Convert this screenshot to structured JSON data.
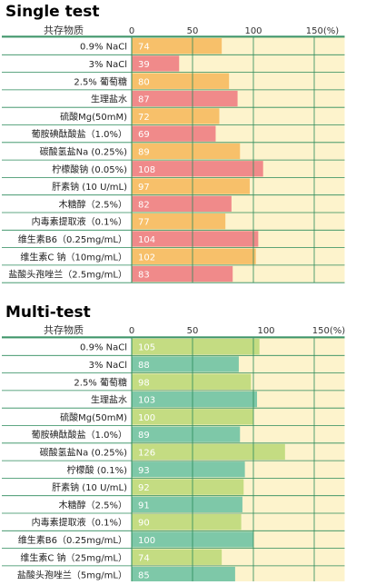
{
  "chart_data": [
    {
      "type": "bar",
      "title": "Single test",
      "column_header": "共存物质",
      "x_ticks": [
        "0",
        "50",
        "100",
        "150(%)"
      ],
      "xlim": [
        0,
        175
      ],
      "categories": [
        "0.9% NaCl",
        "3% NaCl",
        "2.5% 葡萄糖",
        "生理盐水",
        "硫酸Mg(50mM)",
        "葡胺碘酞酸盐（1.0%）",
        "碳酸氢盐Na (0.25%)",
        "柠檬酸钠 (0.05%)",
        "肝素钠 (10 U/mL)",
        "木糖醇（2.5%）",
        "内毒素提取液（0.1%）",
        "维生素B6（0.25mg/mL）",
        "维生素C 钠（10mg/mL）",
        "盐酸头孢唑兰（2.5mg/mL）"
      ],
      "values": [
        74,
        39,
        80,
        87,
        72,
        69,
        89,
        108,
        97,
        82,
        77,
        104,
        102,
        83
      ],
      "value_labels": [
        "74",
        "39",
        "80",
        "87",
        "72",
        "69",
        "89",
        "108",
        "97",
        "82",
        "77",
        "104",
        "102",
        "83"
      ],
      "bar_colors": [
        "#f7c06a",
        "#f08a8a",
        "#f7c06a",
        "#f08a8a",
        "#f7c06a",
        "#f08a8a",
        "#f7c06a",
        "#f08a8a",
        "#f7c06a",
        "#f08a8a",
        "#f7c06a",
        "#f08a8a",
        "#f7c06a",
        "#f08a8a"
      ],
      "background_color": "#fdf3cc",
      "grid": true
    },
    {
      "type": "bar",
      "title": "Multi-test",
      "column_header": "共存物质",
      "x_ticks": [
        "0",
        "50",
        "100",
        "150(%)"
      ],
      "xlim": [
        0,
        175
      ],
      "categories": [
        "0.9% NaCl",
        "3% NaCl",
        "2.5% 葡萄糖",
        "生理盐水",
        "硫酸Mg(50mM)",
        "葡胺碘酞酸盐（1.0%）",
        "碳酸氢盐Na (0.25%)",
        "柠檬酸 (0.1%)",
        "肝素钠 (10 U/mL)",
        "木糖醇（2.5%）",
        "内毒素提取液（0.1%）",
        "维生素B6（0.25mg/mL）",
        "维生素C 钠（25mg/mL）",
        "盐酸头孢唑兰（5mg/mL）"
      ],
      "values": [
        105,
        88,
        98,
        103,
        100,
        89,
        126,
        93,
        92,
        91,
        90,
        100,
        74,
        85
      ],
      "value_labels": [
        "105",
        "88",
        "98",
        "103",
        "100",
        "89",
        "126",
        "93",
        "92",
        "91",
        "90",
        "100",
        "74",
        "85"
      ],
      "bar_colors": [
        "#c4dc82",
        "#7ec8a8",
        "#c4dc82",
        "#7ec8a8",
        "#c4dc82",
        "#7ec8a8",
        "#c4dc82",
        "#7ec8a8",
        "#c4dc82",
        "#7ec8a8",
        "#c4dc82",
        "#7ec8a8",
        "#c4dc82",
        "#7ec8a8"
      ],
      "background_color": "#fdf3cc",
      "grid": true
    }
  ]
}
